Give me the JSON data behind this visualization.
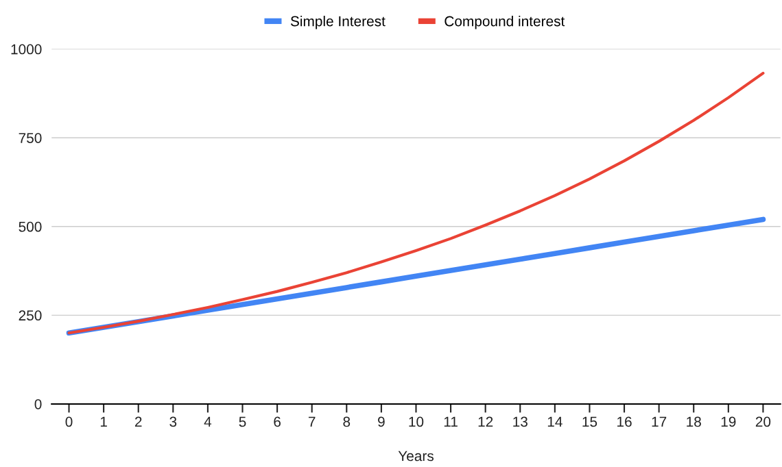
{
  "chart_data": {
    "type": "line",
    "xlabel": "Years",
    "categories": [
      "0",
      "1",
      "2",
      "3",
      "4",
      "5",
      "6",
      "7",
      "8",
      "9",
      "10",
      "11",
      "12",
      "13",
      "14",
      "15",
      "16",
      "17",
      "18",
      "19",
      "20"
    ],
    "series": [
      {
        "name": "Simple Interest",
        "color": "#4285f4",
        "values": [
          200,
          216,
          232,
          248,
          264,
          280,
          296,
          312,
          328,
          344,
          360,
          376,
          392,
          408,
          424,
          440,
          456,
          472,
          488,
          504,
          520
        ]
      },
      {
        "name": "Compound interest",
        "color": "#ea4335",
        "values": [
          200,
          216,
          233,
          252,
          272,
          294,
          317,
          343,
          370,
          400,
          432,
          466,
          504,
          544,
          587,
          634,
          685,
          740,
          799,
          863,
          932
        ]
      }
    ],
    "ylim": [
      0,
      1000
    ],
    "yticks": [
      0,
      250,
      500,
      750,
      1000
    ],
    "grid": "y",
    "legend": "top",
    "marker": "none",
    "line_style": "solid"
  }
}
